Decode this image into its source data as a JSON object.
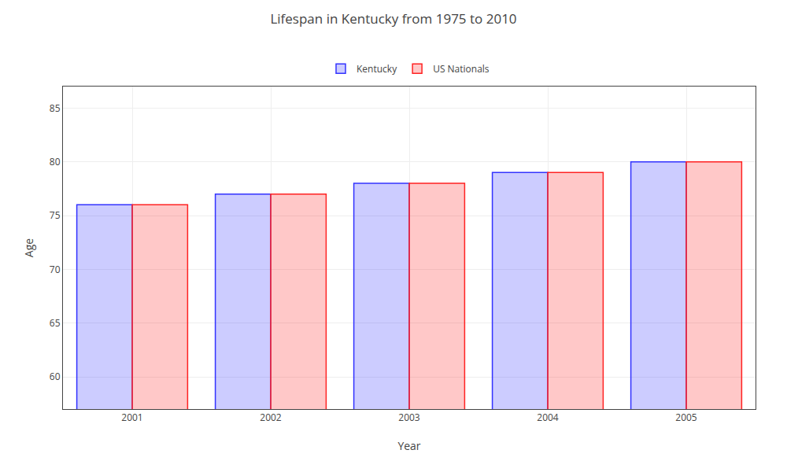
{
  "chart_data": {
    "type": "bar",
    "title": "Lifespan in Kentucky from 1975 to 2010",
    "x_label": "Year",
    "y_label": "Age",
    "categories": [
      "2001",
      "2002",
      "2003",
      "2004",
      "2005"
    ],
    "series": [
      {
        "name": "Kentucky",
        "color": "#3333ff",
        "values": [
          76,
          77,
          78,
          79,
          80
        ]
      },
      {
        "name": "US Nationals",
        "color": "#ff2222",
        "values": [
          76,
          77,
          78,
          79,
          80
        ]
      }
    ],
    "ylim": [
      57,
      87
    ],
    "yticks": [
      60,
      65,
      70,
      75,
      80,
      85
    ],
    "grid": true,
    "legend": "upper center"
  }
}
